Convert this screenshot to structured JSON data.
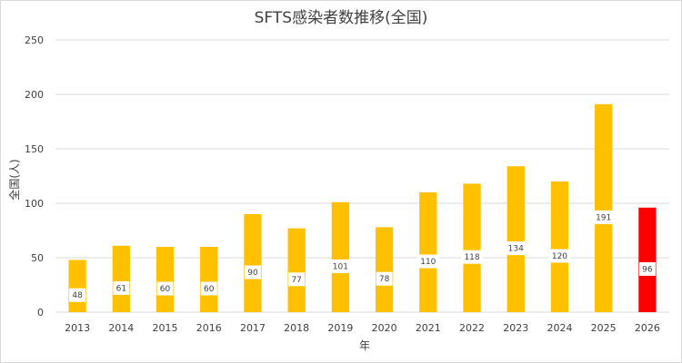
{
  "chart_data": {
    "type": "bar",
    "title": "SFTS感染者数推移(全国)",
    "xlabel": "年",
    "ylabel": "全国(人)",
    "categories": [
      "2013",
      "2014",
      "2015",
      "2016",
      "2017",
      "2018",
      "2019",
      "2020",
      "2021",
      "2022",
      "2023",
      "2024",
      "2025",
      "2026"
    ],
    "values": [
      48,
      61,
      60,
      60,
      90,
      77,
      101,
      78,
      110,
      118,
      134,
      120,
      191,
      96
    ],
    "ylim": [
      0,
      250
    ],
    "yticks": [
      0,
      50,
      100,
      150,
      200,
      250
    ],
    "grid": true,
    "legend": "none",
    "colors": {
      "bar": "#FFC000",
      "highlight": "#FF0000",
      "grid": "#d9d9d9"
    },
    "highlight_category": "2026"
  }
}
